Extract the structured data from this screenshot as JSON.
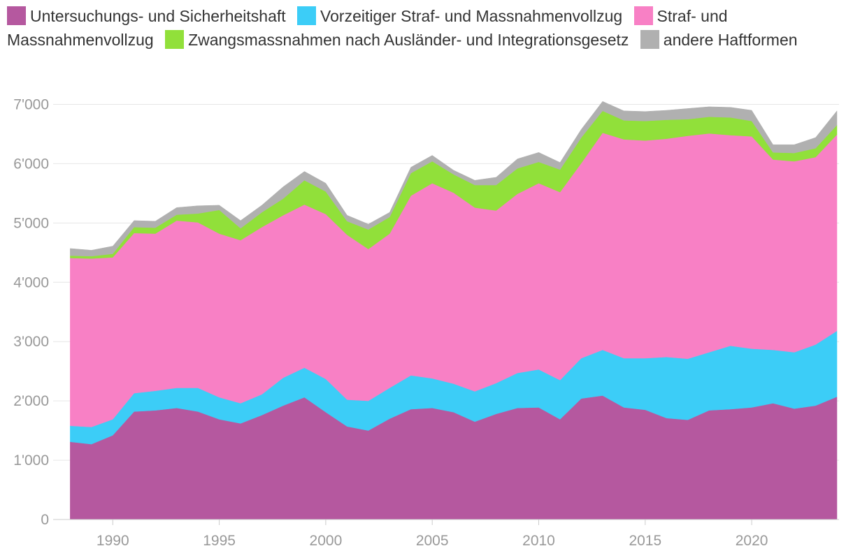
{
  "chart_data": {
    "type": "area",
    "stacked": true,
    "xlabel": "",
    "ylabel": "",
    "x": [
      1988,
      1989,
      1990,
      1991,
      1992,
      1993,
      1994,
      1995,
      1996,
      1997,
      1998,
      1999,
      2000,
      2001,
      2002,
      2003,
      2004,
      2005,
      2006,
      2007,
      2008,
      2009,
      2010,
      2011,
      2012,
      2013,
      2014,
      2015,
      2016,
      2017,
      2018,
      2019,
      2020,
      2021,
      2022,
      2023,
      2024
    ],
    "xlim": [
      1987.2,
      2024.1
    ],
    "ylim": [
      0,
      7300
    ],
    "grid": true,
    "legend": "top",
    "x_ticks": [
      1990,
      1995,
      2000,
      2005,
      2010,
      2015,
      2020
    ],
    "x_tick_labels": [
      "1990",
      "1995",
      "2000",
      "2005",
      "2010",
      "2015",
      "2020"
    ],
    "y_ticks": [
      0,
      1000,
      2000,
      3000,
      4000,
      5000,
      6000,
      7000
    ],
    "y_tick_labels": [
      "0",
      "1'000",
      "2'000",
      "3'000",
      "4'000",
      "5'000",
      "6'000",
      "7'000"
    ],
    "series": [
      {
        "name": "Untersuchungs- und Sicherheitshaft",
        "color": "#b5589f",
        "values": [
          1310,
          1270,
          1420,
          1820,
          1840,
          1880,
          1820,
          1690,
          1620,
          1760,
          1920,
          2060,
          1810,
          1570,
          1500,
          1700,
          1860,
          1880,
          1810,
          1650,
          1780,
          1880,
          1890,
          1690,
          2040,
          2090,
          1890,
          1850,
          1710,
          1680,
          1840,
          1860,
          1890,
          1960,
          1870,
          1920,
          2070
        ]
      },
      {
        "name": "Vorzeitiger Straf- und Massnahmenvollzug",
        "color": "#3ccdf7",
        "values": [
          270,
          290,
          270,
          310,
          330,
          340,
          400,
          370,
          340,
          350,
          470,
          500,
          560,
          450,
          500,
          520,
          570,
          500,
          480,
          510,
          520,
          590,
          640,
          660,
          680,
          770,
          830,
          870,
          1030,
          1030,
          980,
          1070,
          990,
          900,
          950,
          1030,
          1110
        ]
      },
      {
        "name": "Straf- und Massnahmenvollzug",
        "color": "#f880c5",
        "values": [
          2830,
          2840,
          2730,
          2700,
          2650,
          2820,
          2790,
          2760,
          2750,
          2820,
          2740,
          2750,
          2780,
          2780,
          2560,
          2600,
          3030,
          3290,
          3220,
          3100,
          2910,
          3020,
          3140,
          3170,
          3290,
          3660,
          3690,
          3670,
          3680,
          3760,
          3690,
          3550,
          3580,
          3210,
          3220,
          3160,
          3310
        ]
      },
      {
        "name": "Zwangsmassnahmen nach Ausländer- und Integrationsgesetz",
        "color": "#91e03a",
        "values": [
          40,
          40,
          60,
          100,
          100,
          100,
          150,
          400,
          200,
          250,
          280,
          410,
          380,
          230,
          330,
          280,
          380,
          370,
          310,
          380,
          430,
          430,
          360,
          380,
          430,
          370,
          320,
          330,
          320,
          280,
          280,
          300,
          260,
          120,
          140,
          150,
          160
        ]
      },
      {
        "name": "andere Haftformen",
        "color": "#b0b0b0",
        "values": [
          120,
          100,
          130,
          110,
          110,
          120,
          130,
          80,
          130,
          120,
          200,
          150,
          140,
          100,
          90,
          80,
          100,
          100,
          70,
          80,
          130,
          160,
          160,
          120,
          140,
          160,
          160,
          160,
          160,
          180,
          170,
          170,
          180,
          130,
          140,
          180,
          240
        ]
      }
    ]
  }
}
